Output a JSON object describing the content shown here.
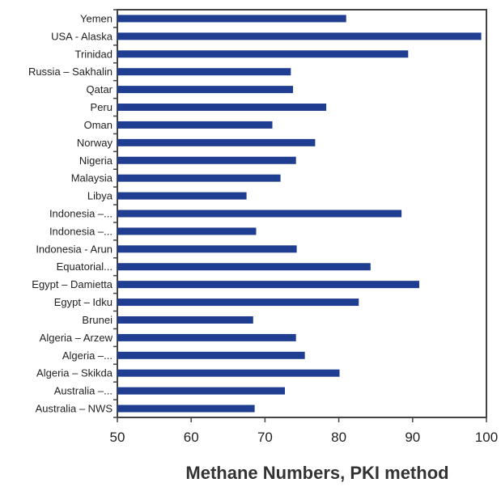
{
  "chart_data": {
    "type": "bar",
    "orientation": "horizontal",
    "title": "",
    "xlabel": "Methane Numbers, PKI method",
    "ylabel": "",
    "xlim": [
      50,
      100
    ],
    "x_ticks": [
      50,
      60,
      70,
      80,
      90,
      100
    ],
    "grid": false,
    "legend": "none",
    "bar_color": "#1f3d91",
    "categories": [
      "Yemen",
      "USA - Alaska",
      "Trinidad",
      "Russia – Sakhalin",
      "Qatar",
      "Peru",
      "Oman",
      "Norway",
      "Nigeria",
      "Malaysia",
      "Libya",
      "Indonesia –...",
      "Indonesia –...",
      "Indonesia - Arun",
      "Equatorial...",
      "Egypt – Damietta",
      "Egypt – Idku",
      "Brunei",
      "Algeria – Arzew",
      "Algeria –...",
      "Algeria – Skikda",
      "Australia –...",
      "Australia – NWS"
    ],
    "values": [
      81.0,
      99.3,
      89.4,
      73.5,
      73.8,
      78.3,
      71.0,
      76.8,
      74.2,
      72.1,
      67.5,
      88.5,
      68.8,
      74.3,
      84.3,
      90.9,
      82.7,
      68.4,
      74.2,
      75.4,
      80.1,
      72.7,
      68.6
    ]
  }
}
